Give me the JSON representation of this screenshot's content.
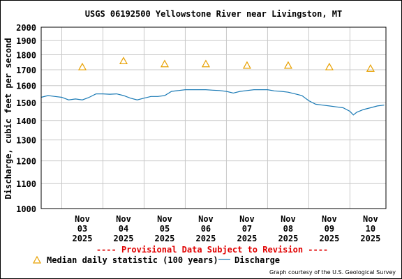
{
  "chart_data": {
    "type": "line",
    "title": "USGS 06192500 Yellowstone River near Livingston, MT",
    "ylabel": "Discharge, cubic feet per second",
    "xlabel": "",
    "ylim": [
      1000,
      2000
    ],
    "y_scale": "log",
    "yticks": [
      1000,
      1100,
      1200,
      1300,
      1400,
      1500,
      1600,
      1700,
      1800,
      1900,
      2000
    ],
    "y_tick_labels": [
      "1000",
      "1100",
      "1200",
      "1300",
      "1400",
      "1500",
      "1600",
      "1700",
      "1800",
      "1900",
      "2000"
    ],
    "x_ticks": [
      {
        "date": "2025-11-03",
        "label": [
          "Nov",
          "03",
          "2025"
        ]
      },
      {
        "date": "2025-11-04",
        "label": [
          "Nov",
          "04",
          "2025"
        ]
      },
      {
        "date": "2025-11-05",
        "label": [
          "Nov",
          "05",
          "2025"
        ]
      },
      {
        "date": "2025-11-06",
        "label": [
          "Nov",
          "06",
          "2025"
        ]
      },
      {
        "date": "2025-11-07",
        "label": [
          "Nov",
          "07",
          "2025"
        ]
      },
      {
        "date": "2025-11-08",
        "label": [
          "Nov",
          "08",
          "2025"
        ]
      },
      {
        "date": "2025-11-09",
        "label": [
          "Nov",
          "09",
          "2025"
        ]
      },
      {
        "date": "2025-11-10",
        "label": [
          "Nov",
          "10",
          "2025"
        ]
      }
    ],
    "x_range": [
      "2025-11-02T12:00",
      "2025-11-10T21:00"
    ],
    "grid": true,
    "legend_placement": "bottom",
    "series": [
      {
        "name": "Median daily statistic (100 years)",
        "style": "triangle-marker",
        "color": "#e8a000",
        "points": [
          {
            "x": "2025-11-03T12:00",
            "y": 1720
          },
          {
            "x": "2025-11-04T12:00",
            "y": 1760
          },
          {
            "x": "2025-11-05T12:00",
            "y": 1740
          },
          {
            "x": "2025-11-06T12:00",
            "y": 1740
          },
          {
            "x": "2025-11-07T12:00",
            "y": 1730
          },
          {
            "x": "2025-11-08T12:00",
            "y": 1730
          },
          {
            "x": "2025-11-09T12:00",
            "y": 1720
          },
          {
            "x": "2025-11-10T12:00",
            "y": 1710
          }
        ]
      },
      {
        "name": "Discharge",
        "style": "line",
        "color": "#1a7ab5",
        "points": [
          {
            "x": "2025-11-02T12:00",
            "y": 1530
          },
          {
            "x": "2025-11-02T16:00",
            "y": 1540
          },
          {
            "x": "2025-11-02T20:00",
            "y": 1535
          },
          {
            "x": "2025-11-03T00:00",
            "y": 1530
          },
          {
            "x": "2025-11-03T04:00",
            "y": 1515
          },
          {
            "x": "2025-11-03T08:00",
            "y": 1520
          },
          {
            "x": "2025-11-03T12:00",
            "y": 1515
          },
          {
            "x": "2025-11-03T16:00",
            "y": 1530
          },
          {
            "x": "2025-11-03T20:00",
            "y": 1550
          },
          {
            "x": "2025-11-04T00:00",
            "y": 1550
          },
          {
            "x": "2025-11-04T04:00",
            "y": 1548
          },
          {
            "x": "2025-11-04T08:00",
            "y": 1550
          },
          {
            "x": "2025-11-04T12:00",
            "y": 1540
          },
          {
            "x": "2025-11-04T16:00",
            "y": 1525
          },
          {
            "x": "2025-11-04T20:00",
            "y": 1515
          },
          {
            "x": "2025-11-05T00:00",
            "y": 1525
          },
          {
            "x": "2025-11-05T04:00",
            "y": 1535
          },
          {
            "x": "2025-11-05T08:00",
            "y": 1535
          },
          {
            "x": "2025-11-05T12:00",
            "y": 1540
          },
          {
            "x": "2025-11-05T16:00",
            "y": 1565
          },
          {
            "x": "2025-11-05T20:00",
            "y": 1570
          },
          {
            "x": "2025-11-06T00:00",
            "y": 1575
          },
          {
            "x": "2025-11-06T04:00",
            "y": 1575
          },
          {
            "x": "2025-11-06T08:00",
            "y": 1575
          },
          {
            "x": "2025-11-06T12:00",
            "y": 1575
          },
          {
            "x": "2025-11-06T16:00",
            "y": 1572
          },
          {
            "x": "2025-11-06T20:00",
            "y": 1570
          },
          {
            "x": "2025-11-07T00:00",
            "y": 1565
          },
          {
            "x": "2025-11-07T04:00",
            "y": 1555
          },
          {
            "x": "2025-11-07T08:00",
            "y": 1565
          },
          {
            "x": "2025-11-07T12:00",
            "y": 1570
          },
          {
            "x": "2025-11-07T16:00",
            "y": 1575
          },
          {
            "x": "2025-11-07T20:00",
            "y": 1575
          },
          {
            "x": "2025-11-08T00:00",
            "y": 1575
          },
          {
            "x": "2025-11-08T04:00",
            "y": 1568
          },
          {
            "x": "2025-11-08T08:00",
            "y": 1565
          },
          {
            "x": "2025-11-08T12:00",
            "y": 1560
          },
          {
            "x": "2025-11-08T16:00",
            "y": 1550
          },
          {
            "x": "2025-11-08T20:00",
            "y": 1540
          },
          {
            "x": "2025-11-09T00:00",
            "y": 1510
          },
          {
            "x": "2025-11-09T04:00",
            "y": 1490
          },
          {
            "x": "2025-11-09T08:00",
            "y": 1485
          },
          {
            "x": "2025-11-09T12:00",
            "y": 1480
          },
          {
            "x": "2025-11-09T16:00",
            "y": 1475
          },
          {
            "x": "2025-11-09T20:00",
            "y": 1470
          },
          {
            "x": "2025-11-10T00:00",
            "y": 1450
          },
          {
            "x": "2025-11-10T02:00",
            "y": 1430
          },
          {
            "x": "2025-11-10T04:00",
            "y": 1445
          },
          {
            "x": "2025-11-10T08:00",
            "y": 1460
          },
          {
            "x": "2025-11-10T12:00",
            "y": 1470
          },
          {
            "x": "2025-11-10T16:00",
            "y": 1480
          },
          {
            "x": "2025-11-10T20:00",
            "y": 1485
          }
        ]
      }
    ]
  },
  "notice": "---- Provisional Data Subject to Revision ----",
  "legend": {
    "median_label": "Median daily statistic (100 years)",
    "discharge_label": "Discharge"
  },
  "credit": "Graph courtesy of the U.S. Geological Survey",
  "colors": {
    "grid": "#c8c8c8",
    "axis": "#000000",
    "notice": "#e00000",
    "median": "#e8a000",
    "discharge": "#1a7ab5"
  }
}
